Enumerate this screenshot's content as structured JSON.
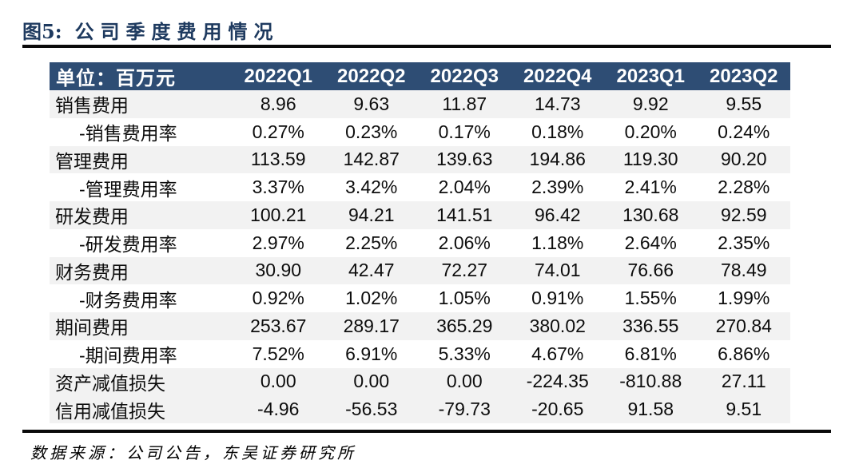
{
  "figure_label": "图5:",
  "figure_title": "公司季度费用情况",
  "chart_data": {
    "type": "table",
    "title": "公司季度费用情况",
    "unit_label": "单位：百万元",
    "columns": [
      "2022Q1",
      "2022Q2",
      "2022Q3",
      "2022Q4",
      "2023Q1",
      "2023Q2"
    ],
    "rows": [
      {
        "label": "销售费用",
        "values": [
          "8.96",
          "9.63",
          "11.87",
          "14.73",
          "9.92",
          "9.55"
        ]
      },
      {
        "label": "-销售费用率",
        "values": [
          "0.27%",
          "0.23%",
          "0.17%",
          "0.18%",
          "0.20%",
          "0.24%"
        ]
      },
      {
        "label": "管理费用",
        "values": [
          "113.59",
          "142.87",
          "139.63",
          "194.86",
          "119.30",
          "90.20"
        ]
      },
      {
        "label": "-管理费用率",
        "values": [
          "3.37%",
          "3.42%",
          "2.04%",
          "2.39%",
          "2.41%",
          "2.28%"
        ]
      },
      {
        "label": "研发费用",
        "values": [
          "100.21",
          "94.21",
          "141.51",
          "96.42",
          "130.68",
          "92.59"
        ]
      },
      {
        "label": "-研发费用率",
        "values": [
          "2.97%",
          "2.25%",
          "2.06%",
          "1.18%",
          "2.64%",
          "2.35%"
        ]
      },
      {
        "label": "财务费用",
        "values": [
          "30.90",
          "42.47",
          "72.27",
          "74.01",
          "76.66",
          "78.49"
        ]
      },
      {
        "label": "-财务费用率",
        "values": [
          "0.92%",
          "1.02%",
          "1.05%",
          "0.91%",
          "1.55%",
          "1.99%"
        ]
      },
      {
        "label": "期间费用",
        "values": [
          "253.67",
          "289.17",
          "365.29",
          "380.02",
          "336.55",
          "270.84"
        ]
      },
      {
        "label": "-期间费用率",
        "values": [
          "7.52%",
          "6.91%",
          "5.33%",
          "4.67%",
          "6.81%",
          "6.86%"
        ]
      },
      {
        "label": "资产减值损失",
        "values": [
          "0.00",
          "0.00",
          "0.00",
          "-224.35",
          "-810.88",
          "27.11"
        ]
      },
      {
        "label": "信用减值损失",
        "values": [
          "-4.96",
          "-56.53",
          "-79.73",
          "-20.65",
          "91.58",
          "9.51"
        ]
      }
    ],
    "source_note": "数据来源：公司公告，东吴证券研究所"
  },
  "colors": {
    "header_bg": "#2E4D74",
    "shaded_row_bg": "#F2F2F2",
    "title_text": "#1E3A5F",
    "header_text": "#FFFFFF"
  }
}
